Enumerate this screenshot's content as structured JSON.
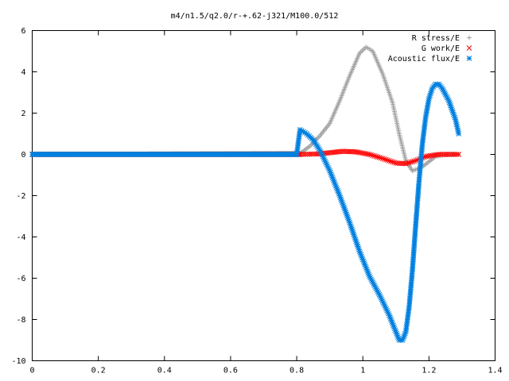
{
  "chart_data": {
    "type": "scatter",
    "title": "m4/n1.5/q2.0/r-+.62-j321/M100.0/512",
    "xlabel": "",
    "ylabel": "",
    "xlim": [
      0,
      1.4
    ],
    "ylim": [
      -10,
      6
    ],
    "xticks": [
      "0",
      "0.2",
      "0.4",
      "0.6",
      "0.8",
      "1",
      "1.2",
      "1.4"
    ],
    "yticks": [
      "6",
      "4",
      "2",
      "0",
      "-2",
      "-4",
      "-6",
      "-8",
      "-10"
    ],
    "grid": false,
    "legend_position": "top-right",
    "series": [
      {
        "name": "R stress/E",
        "color": "#a0a0a0",
        "marker": "plus",
        "x": [
          0.0,
          0.81,
          0.84,
          0.87,
          0.9,
          0.93,
          0.96,
          0.99,
          1.01,
          1.03,
          1.06,
          1.09,
          1.11,
          1.13,
          1.15,
          1.18,
          1.22,
          1.26,
          1.29
        ],
        "y": [
          0.0,
          0.05,
          0.4,
          0.9,
          1.5,
          2.6,
          3.8,
          4.9,
          5.2,
          5.0,
          3.9,
          2.5,
          1.0,
          -0.3,
          -0.8,
          -0.6,
          -0.1,
          0.0,
          0.0
        ]
      },
      {
        "name": "G work/E",
        "color": "#ff0000",
        "marker": "cross",
        "x": [
          0.0,
          0.81,
          0.86,
          0.9,
          0.94,
          0.98,
          1.02,
          1.06,
          1.1,
          1.13,
          1.16,
          1.19,
          1.23,
          1.29
        ],
        "y": [
          0.0,
          0.0,
          0.02,
          0.08,
          0.15,
          0.12,
          0.0,
          -0.2,
          -0.42,
          -0.45,
          -0.3,
          -0.1,
          0.0,
          0.0
        ]
      },
      {
        "name": "Acoustic flux/E",
        "color": "#0080e0",
        "marker": "star",
        "x": [
          0.0,
          0.8,
          0.81,
          0.83,
          0.85,
          0.87,
          0.9,
          0.93,
          0.96,
          0.99,
          1.02,
          1.05,
          1.08,
          1.1,
          1.11,
          1.12,
          1.13,
          1.14,
          1.15,
          1.16,
          1.17,
          1.18,
          1.19,
          1.2,
          1.21,
          1.22,
          1.23,
          1.24,
          1.26,
          1.28,
          1.29
        ],
        "y": [
          0.0,
          0.0,
          1.2,
          1.0,
          0.7,
          0.2,
          -0.8,
          -2.0,
          -3.3,
          -4.7,
          -5.9,
          -6.8,
          -7.8,
          -8.6,
          -9.0,
          -9.0,
          -8.6,
          -7.4,
          -5.6,
          -3.4,
          -1.3,
          0.5,
          1.8,
          2.7,
          3.2,
          3.4,
          3.4,
          3.2,
          2.6,
          1.7,
          1.0
        ]
      }
    ]
  }
}
